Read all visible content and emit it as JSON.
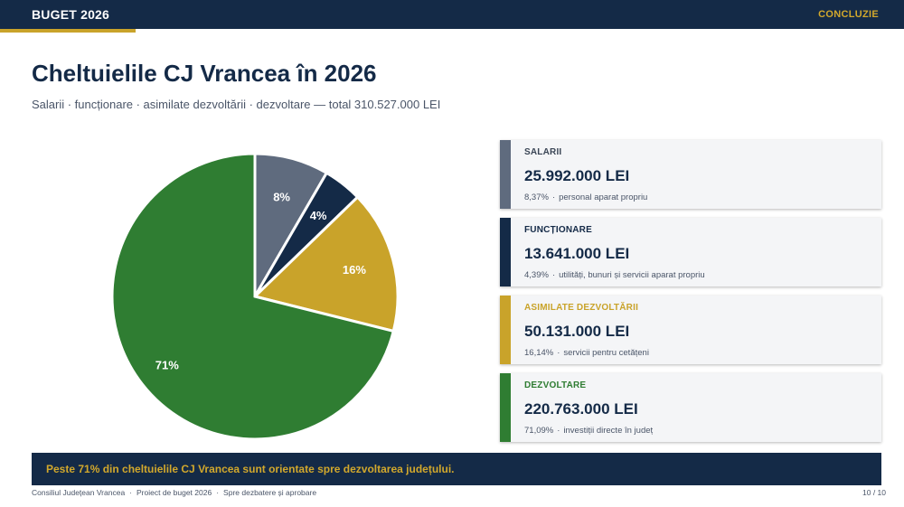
{
  "header": {
    "brand": "BUGET 2026",
    "section": "CONCLUZIE"
  },
  "title": "Cheltuielile CJ Vrancea în 2026",
  "subtitle": "Salarii · funcționare · asimilate dezvoltării · dezvoltare — total 310.527.000 LEI",
  "colors": {
    "navy": "#142a47",
    "gold": "#c9a32a",
    "slate": "#5f6b7e",
    "green": "#2f7d32"
  },
  "chart_data": {
    "type": "pie",
    "total": 310527000,
    "slices": [
      {
        "label": "SALARII",
        "value": 25992000,
        "percent_label": "8%",
        "color": "#5f6b7e"
      },
      {
        "label": "FUNCȚIONARE",
        "value": 13641000,
        "percent_label": "4%",
        "color": "#142a47"
      },
      {
        "label": "ASIMILATE DEZVOLTĂRII",
        "value": 50131000,
        "percent_label": "16%",
        "color": "#c9a32a"
      },
      {
        "label": "DEZVOLTARE",
        "value": 220763000,
        "percent_label": "71%",
        "color": "#2f7d32"
      }
    ]
  },
  "cards": [
    {
      "name": "SALARII",
      "value": "25.992.000 LEI",
      "percent": "8,37%",
      "desc": "personal aparat propriu",
      "color": "#5f6b7e",
      "name_color": "#3a4555"
    },
    {
      "name": "FUNCȚIONARE",
      "value": "13.641.000 LEI",
      "percent": "4,39%",
      "desc": "utilități, bunuri și servicii aparat propriu",
      "color": "#142a47",
      "name_color": "#142a47"
    },
    {
      "name": "ASIMILATE DEZVOLTĂRII",
      "value": "50.131.000 LEI",
      "percent": "16,14%",
      "desc": "servicii pentru cetățeni",
      "color": "#c9a32a",
      "name_color": "#c9a32a"
    },
    {
      "name": "DEZVOLTARE",
      "value": "220.763.000 LEI",
      "percent": "71,09%",
      "desc": "investiții directe în județ",
      "color": "#2f7d32",
      "name_color": "#2f7d32"
    }
  ],
  "banner": "Peste 71% din cheltuielile CJ Vrancea sunt orientate spre dezvoltarea județului.",
  "footer": {
    "items": [
      "Consiliul Județean Vrancea",
      "Proiect de buget 2026",
      "Spre dezbatere și aprobare"
    ],
    "page": "10 / 10"
  }
}
